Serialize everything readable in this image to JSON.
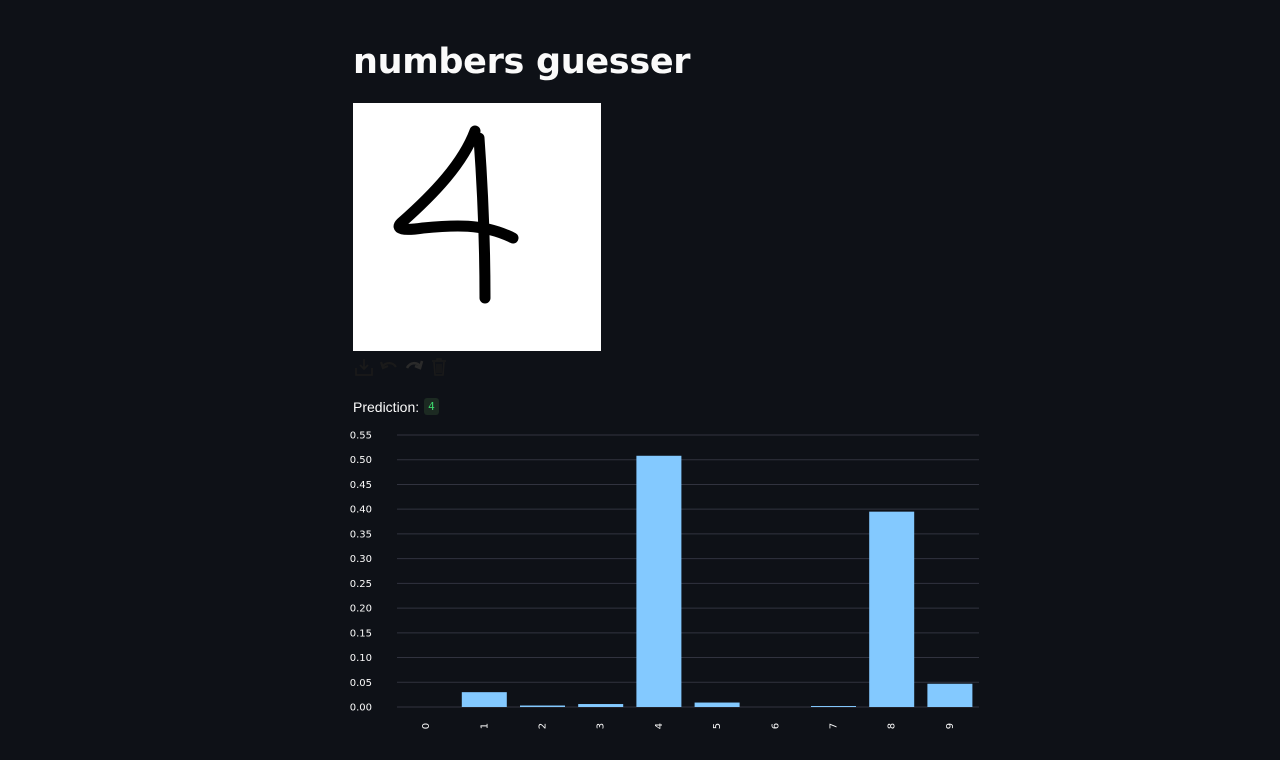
{
  "app": {
    "title": "numbers guesser"
  },
  "canvas": {
    "drawn_digit": "4",
    "background": "#ffffff",
    "stroke_color": "#000000"
  },
  "toolbar": {
    "tools": [
      {
        "name": "download-icon"
      },
      {
        "name": "undo-icon"
      },
      {
        "name": "redo-icon"
      },
      {
        "name": "trash-icon"
      }
    ]
  },
  "prediction": {
    "label": "Prediction:",
    "value": "4"
  },
  "colors": {
    "background": "#0e1117",
    "bar": "#83c9ff",
    "grid": "#31333f",
    "prediction_value": "#3dd56d"
  },
  "chart_data": {
    "type": "bar",
    "categories": [
      "0",
      "1",
      "2",
      "3",
      "4",
      "5",
      "6",
      "7",
      "8",
      "9"
    ],
    "values": [
      0.0,
      0.03,
      0.003,
      0.006,
      0.508,
      0.009,
      0.0,
      0.002,
      0.395,
      0.047
    ],
    "y_ticks": [
      "0.00",
      "0.05",
      "0.10",
      "0.15",
      "0.20",
      "0.25",
      "0.30",
      "0.35",
      "0.40",
      "0.45",
      "0.50",
      "0.55"
    ],
    "ylim": [
      0,
      0.55
    ],
    "grid": true,
    "title": "",
    "xlabel": "",
    "ylabel": ""
  }
}
